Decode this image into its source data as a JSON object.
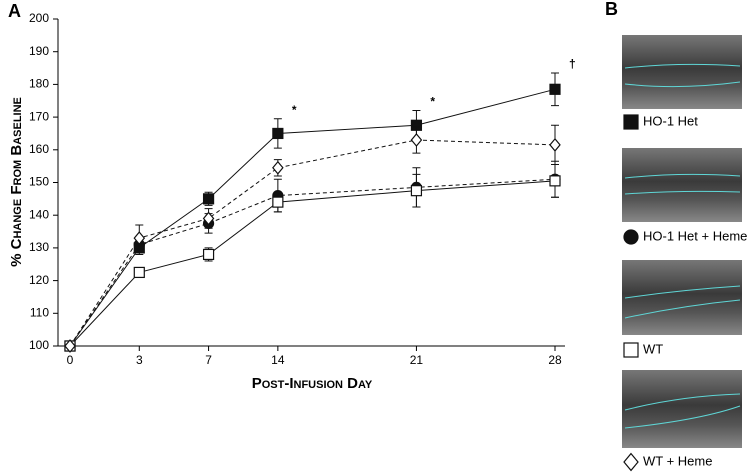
{
  "chart_data": {
    "type": "line",
    "panel_labels": [
      "A",
      "B"
    ],
    "x_label": "Post-Infusion Day",
    "y_label": "% Change From Baseline",
    "categories": [
      "0",
      "3",
      "7",
      "14",
      "21",
      "28"
    ],
    "ylim": [
      100,
      200
    ],
    "yticks": [
      100,
      110,
      120,
      130,
      140,
      150,
      160,
      170,
      180,
      190,
      200
    ],
    "series": [
      {
        "name": "HO-1 Het",
        "color": "#111111",
        "marker": "square",
        "marker_fill": "#111111",
        "dashed": false,
        "values": [
          100,
          130,
          145,
          165,
          167.5,
          178.5
        ],
        "errors": [
          0,
          2,
          2,
          4.5,
          4.5,
          5
        ]
      },
      {
        "name": "HO-1 Het + Heme",
        "color": "#111111",
        "marker": "circle",
        "marker_fill": "#111111",
        "dashed": true,
        "values": [
          100,
          131,
          137.5,
          146,
          148.5,
          151
        ],
        "errors": [
          0,
          2,
          3,
          5,
          6,
          5.5
        ]
      },
      {
        "name": "WT",
        "color": "#111111",
        "marker": "square",
        "marker_fill": "#ffffff",
        "dashed": false,
        "values": [
          100,
          122.5,
          128,
          144,
          147.5,
          150.5
        ],
        "errors": [
          0,
          1.5,
          2,
          3,
          5,
          5
        ]
      },
      {
        "name": "WT + Heme",
        "color": "#111111",
        "marker": "diamond",
        "marker_fill": "#ffffff",
        "dashed": true,
        "values": [
          100,
          133,
          139,
          154.5,
          163,
          161.5
        ],
        "errors": [
          0,
          4,
          3,
          2.5,
          4,
          6
        ]
      }
    ],
    "annotations": [
      {
        "category": "14",
        "text": "*"
      },
      {
        "category": "21",
        "text": "*"
      },
      {
        "category": "28",
        "text": "†"
      }
    ]
  }
}
